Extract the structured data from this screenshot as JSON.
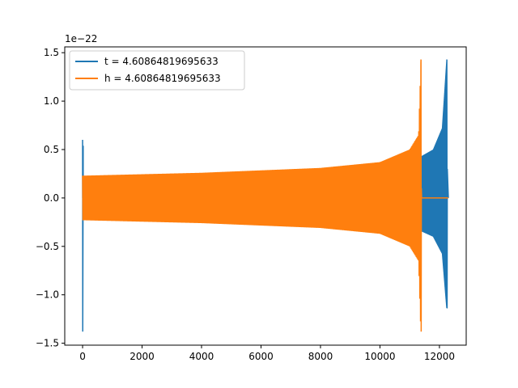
{
  "chart_data": {
    "type": "line",
    "offset_text": "1e−22",
    "xlim": [
      -600,
      12900
    ],
    "ylim": [
      -1.52,
      1.56
    ],
    "x_ticks": [
      0,
      2000,
      4000,
      6000,
      8000,
      10000,
      12000
    ],
    "x_tick_labels": [
      "0",
      "2000",
      "4000",
      "6000",
      "8000",
      "10000",
      "12000"
    ],
    "y_ticks": [
      -1.5,
      -1.0,
      -0.5,
      0.0,
      0.5,
      1.0,
      1.5
    ],
    "y_tick_labels": [
      "−1.5",
      "−1.0",
      "−0.5",
      "0.0",
      "0.5",
      "1.0",
      "1.5"
    ],
    "grid": false,
    "legend_position": "top-left",
    "series": [
      {
        "name": "t = 4.60864819695633",
        "color": "#1f77b4",
        "x_range": [
          0,
          12300
        ],
        "spike_at_start": {
          "x": [
            0,
            20
          ],
          "ymax": 0.6,
          "ymin": -1.38
        },
        "chirp_end": {
          "x": 12250,
          "ymax": 1.43,
          "ymin": -1.14
        },
        "envelope_after_merger_of_other": [
          {
            "x": 11400,
            "y": 0.43
          },
          {
            "x": 11800,
            "y": 0.5
          },
          {
            "x": 12100,
            "y": 0.72
          },
          {
            "x": 12250,
            "y": 1.43
          }
        ]
      },
      {
        "name": "h = 4.60864819695633",
        "color": "#ff7f0e",
        "x_range": [
          0,
          12300
        ],
        "envelope": [
          {
            "x": 0,
            "y": 0.23
          },
          {
            "x": 4000,
            "y": 0.26
          },
          {
            "x": 8000,
            "y": 0.31
          },
          {
            "x": 10000,
            "y": 0.37
          },
          {
            "x": 11000,
            "y": 0.5
          },
          {
            "x": 11300,
            "y": 0.65
          },
          {
            "x": 11380,
            "y": 1.43
          }
        ],
        "merger": {
          "x": 11380,
          "ymax": 1.43,
          "ymin": -1.38
        },
        "flat_after_merger": {
          "x": [
            11400,
            12300
          ],
          "y": 0.0
        }
      }
    ]
  }
}
